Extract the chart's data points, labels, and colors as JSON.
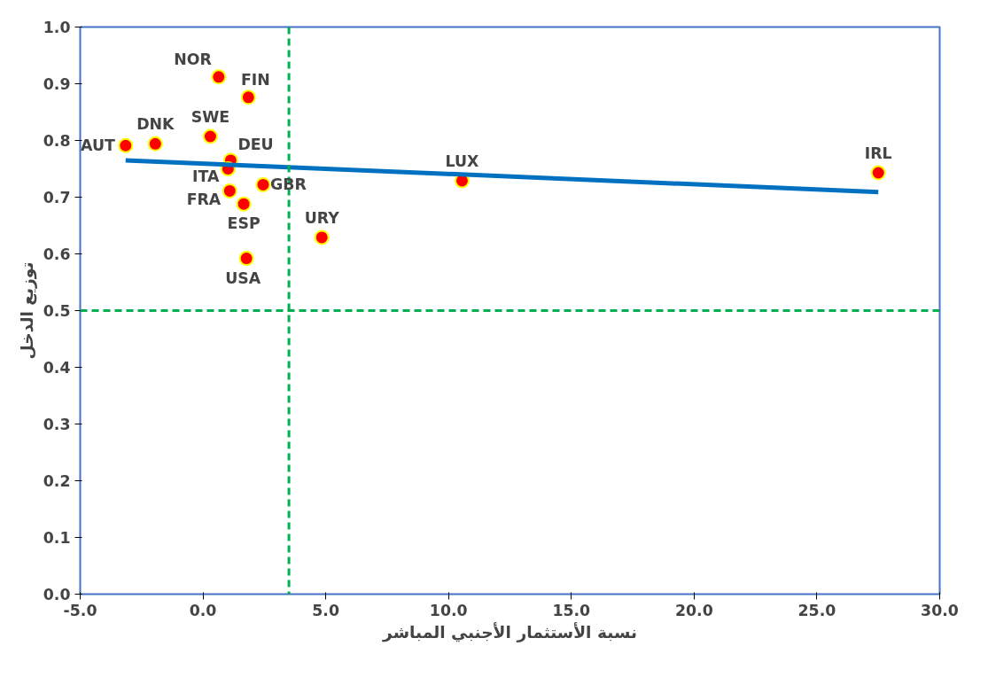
{
  "chart_data": {
    "type": "scatter",
    "xlabel": "نسبة الأستثمار الأجنبي المباشر",
    "ylabel": "توزيع الدخل",
    "x": [
      -3.15,
      -1.94,
      0.64,
      1.85,
      0.3,
      1.13,
      1.02,
      1.09,
      1.66,
      2.45,
      1.77,
      4.84,
      10.55,
      27.5
    ],
    "series": [
      {
        "color": "#ff0000",
        "values": [
          0.791,
          0.794,
          0.912,
          0.876,
          0.807,
          0.765,
          0.75,
          0.711,
          0.688,
          0.722,
          0.592,
          0.629,
          0.729,
          0.743
        ]
      },
      {
        "type": "line",
        "marker": "none",
        "color": "#0070c0",
        "x": [
          -3.15,
          27.5
        ],
        "values": [
          0.765,
          0.709
        ]
      }
    ],
    "annotations": [
      {
        "text": "AUT",
        "x": -3.15,
        "y": 0.791
      },
      {
        "text": "DNK",
        "x": -1.94,
        "y": 0.794
      },
      {
        "text": "NOR",
        "x": 0.64,
        "y": 0.912
      },
      {
        "text": "FIN",
        "x": 1.85,
        "y": 0.876
      },
      {
        "text": "SWE",
        "x": 0.3,
        "y": 0.807
      },
      {
        "text": "DEU",
        "x": 1.13,
        "y": 0.765
      },
      {
        "text": "ITA",
        "x": 1.02,
        "y": 0.75
      },
      {
        "text": "FRA",
        "x": 1.09,
        "y": 0.711
      },
      {
        "text": "ESP",
        "x": 1.66,
        "y": 0.688
      },
      {
        "text": "GBR",
        "x": 2.45,
        "y": 0.722
      },
      {
        "text": "USA",
        "x": 1.77,
        "y": 0.592
      },
      {
        "text": "URY",
        "x": 4.84,
        "y": 0.629
      },
      {
        "text": "LUX",
        "x": 10.55,
        "y": 0.729
      },
      {
        "text": "IRL",
        "x": 27.5,
        "y": 0.743
      }
    ],
    "ref_lines": [
      {
        "axis": "x",
        "value": 3.5,
        "color": "#00b050",
        "line_style": "dashed"
      },
      {
        "axis": "y",
        "value": 0.5,
        "color": "#00b050",
        "line_style": "dashed"
      }
    ],
    "xlim": [
      -5,
      30
    ],
    "ylim": [
      0,
      1
    ],
    "xticks": [
      {
        "value": -5,
        "label": "-5.0"
      },
      {
        "value": 0,
        "label": "0.0"
      },
      {
        "value": 5,
        "label": "5.0"
      },
      {
        "value": 10,
        "label": "10.0"
      },
      {
        "value": 15,
        "label": "15.0"
      },
      {
        "value": 20,
        "label": "20.0"
      },
      {
        "value": 25,
        "label": "25.0"
      },
      {
        "value": 30,
        "label": "30.0"
      }
    ],
    "yticks": [
      {
        "value": 0,
        "label": "0.0"
      },
      {
        "value": 0.1,
        "label": "0.1"
      },
      {
        "value": 0.2,
        "label": "0.2"
      },
      {
        "value": 0.3,
        "label": "0.3"
      },
      {
        "value": 0.4,
        "label": "0.4"
      },
      {
        "value": 0.5,
        "label": "0.5"
      },
      {
        "value": 0.6,
        "label": "0.6"
      },
      {
        "value": 0.7,
        "label": "0.7"
      },
      {
        "value": 0.8,
        "label": "0.8"
      },
      {
        "value": 0.9,
        "label": "0.9"
      },
      {
        "value": 1,
        "label": "1.0"
      }
    ],
    "grid": false,
    "marker": "circle"
  }
}
